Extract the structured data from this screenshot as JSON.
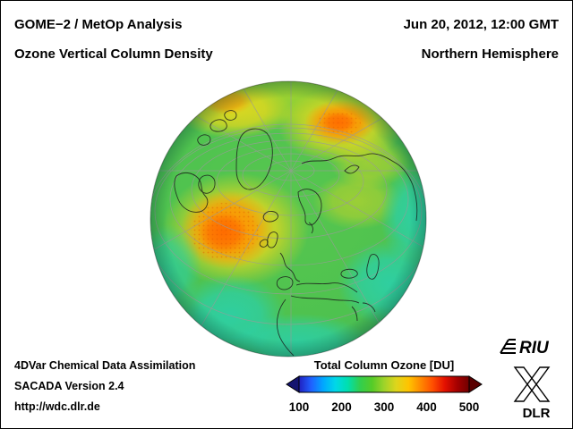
{
  "header": {
    "instrument_line": "GOME−2 / MetOp Analysis",
    "product_line": "Ozone Vertical Column Density",
    "datetime_line": "Jun 20, 2012, 12:00 GMT",
    "region_line": "Northern Hemisphere"
  },
  "footer": {
    "assimilation_line": "4DVar Chemical Data Assimilation",
    "version_line": "SACADA Version 2.4",
    "url_line": "http://wdc.dlr.de"
  },
  "colorbar": {
    "title": "Total Column Ozone [DU]",
    "ticks": [
      "100",
      "200",
      "300",
      "400",
      "500"
    ],
    "left_arrow_color": "#141470",
    "right_arrow_color": "#5a0000",
    "colors": [
      "#2020c0",
      "#2060ff",
      "#00a8ff",
      "#00d8e8",
      "#00dfae",
      "#30cf50",
      "#55cb28",
      "#9ed32a",
      "#ded51c",
      "#ffc400",
      "#ff8a00",
      "#ff4e00",
      "#e31000",
      "#a50000",
      "#700000"
    ]
  },
  "map_colors": {
    "base_green": "#4ec24f",
    "low_ozone_cyan": "#27d2b4",
    "elevated_yellow": "#e4d81e",
    "high_ozone_orange": "#ff9300"
  },
  "logos": {
    "riu": "RIU",
    "dlr": "DLR"
  }
}
